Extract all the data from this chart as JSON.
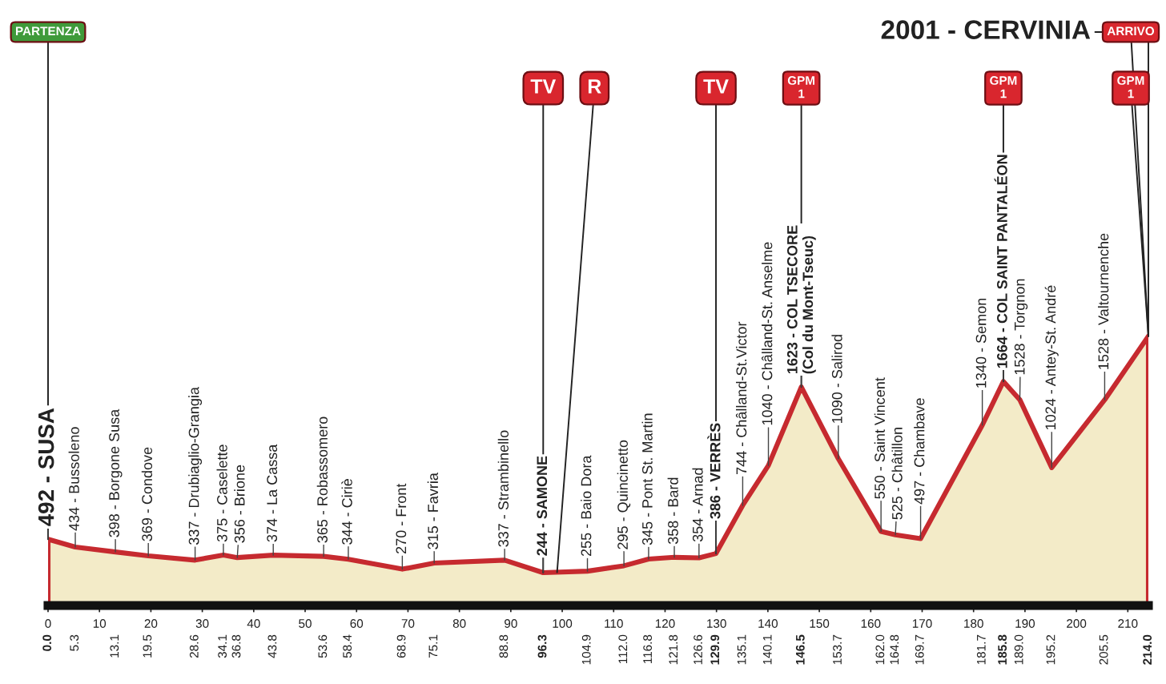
{
  "chart_data": {
    "type": "area",
    "color": "#f3ebc8",
    "x": [
      0.0,
      5.3,
      13.1,
      19.5,
      28.6,
      34.1,
      36.8,
      43.8,
      53.6,
      58.4,
      68.9,
      75.1,
      88.8,
      96.3,
      104.9,
      112.0,
      116.8,
      121.8,
      126.6,
      129.9,
      135.1,
      140.1,
      146.5,
      153.7,
      162.0,
      164.8,
      169.7,
      181.7,
      185.8,
      189.0,
      195.2,
      205.5,
      214.0
    ],
    "values": [
      492,
      434,
      398,
      369,
      337,
      375,
      356,
      374,
      365,
      344,
      270,
      315,
      337,
      244,
      255,
      295,
      345,
      358,
      354,
      386,
      744,
      1040,
      1623,
      1090,
      550,
      525,
      497,
      1340,
      1664,
      1528,
      1024,
      1528,
      2001
    ],
    "value_labels": [
      "492 - SUSA",
      "434 - Bussoleno",
      "398 - Borgone Susa",
      "369 - Condove",
      "337 - Drubiaglio-Grangia",
      "375 - Caselette",
      "356 - Brione",
      "374 - La Cassa",
      "365 - Robassomero",
      "344 - Ciriè",
      "270 - Front",
      "315 - Favria",
      "337 - Strambinello",
      "244 - SAMONE",
      "255 - Baio Dora",
      "295 - Quincinetto",
      "345 - Pont St. Martin",
      "358 - Bard",
      "354 - Arnad",
      "386 - VERRÈS",
      "744 - Châlland-St.Victor",
      "1040 - Châlland-St. Anselme",
      "1623 - COL TSECORE\n(Col du Mont-Tseuc)",
      "1090 - Salirod",
      "550 - Saint Vincent",
      "525 - Châtillon",
      "497 - Chambave",
      "1340 - Semon",
      "1664 - COL SAINT PANTALÉON",
      "1528 - Torgnon",
      "1024 - Antey-St. André",
      "1528 - Valtournenche",
      "2001 - CERVINIA"
    ],
    "xlim": [
      0,
      214
    ],
    "xticks": [
      0,
      10,
      20,
      30,
      40,
      50,
      60,
      70,
      80,
      90,
      100,
      110,
      120,
      130,
      140,
      150,
      160,
      170,
      180,
      190,
      200,
      210
    ],
    "x2lim": [
      0,
      214
    ],
    "x2ticks": [
      {
        "value": 0,
        "label": "0.0"
      },
      5.3,
      13.1,
      19.5,
      28.6,
      34.1,
      36.8,
      43.8,
      53.6,
      58.4,
      68.9,
      75.1,
      88.8,
      96.3,
      104.9,
      {
        "value": 112,
        "label": "112.0"
      },
      116.8,
      121.8,
      126.6,
      129.9,
      135.1,
      140.1,
      146.5,
      153.7,
      {
        "value": 162,
        "label": "162.0"
      },
      164.8,
      169.7,
      181.7,
      185.8,
      {
        "value": 189,
        "label": "189.0"
      },
      195.2,
      205.5,
      {
        "value": 214,
        "label": "214.0"
      }
    ],
    "annotations": [
      {
        "text": "PARTENZA",
        "x": 0,
        "y": 492
      },
      {
        "text": "TV",
        "x": 96.3,
        "y": 244
      },
      {
        "text": "R",
        "x": 99,
        "y": 247
      },
      {
        "text": "TV",
        "x": 129.9,
        "y": 386
      },
      {
        "text": "GPM\n1",
        "x": 146.5,
        "y": 1623
      },
      {
        "text": "GPM\n1",
        "x": 185.8,
        "y": 1664
      },
      {
        "text": "GPM\n1",
        "x": 214,
        "y": 2001
      },
      {
        "text": "ARRIVO",
        "x": 214,
        "y": 2001
      }
    ],
    "tick_labels": "x"
  }
}
